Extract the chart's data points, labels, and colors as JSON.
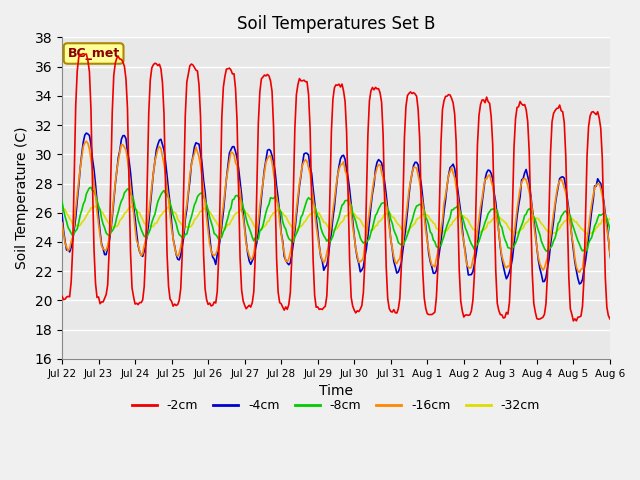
{
  "title": "Soil Temperatures Set B",
  "xlabel": "Time",
  "ylabel": "Soil Temperature (C)",
  "ylim": [
    16,
    38
  ],
  "yticks": [
    16,
    18,
    20,
    22,
    24,
    26,
    28,
    30,
    32,
    34,
    36,
    38
  ],
  "annotation": "BC_met",
  "plot_bg_color": "#e8e8e8",
  "fig_bg_color": "#f0f0f0",
  "line_colors": {
    "-2cm": "#ee0000",
    "-4cm": "#0000cc",
    "-8cm": "#00cc00",
    "-16cm": "#ff8800",
    "-32cm": "#dddd00"
  },
  "tick_labels": [
    "Jul 22",
    "Jul 23",
    "Jul 24",
    "Jul 25",
    "Jul 26",
    "Jul 27",
    "Jul 28",
    "Jul 29",
    "Jul 30",
    "Jul 31",
    "Aug 1",
    "Aug 2",
    "Aug 3",
    "Aug 4",
    "Aug 5",
    "Aug 6"
  ],
  "n_days": 16,
  "n_per_day": 24
}
